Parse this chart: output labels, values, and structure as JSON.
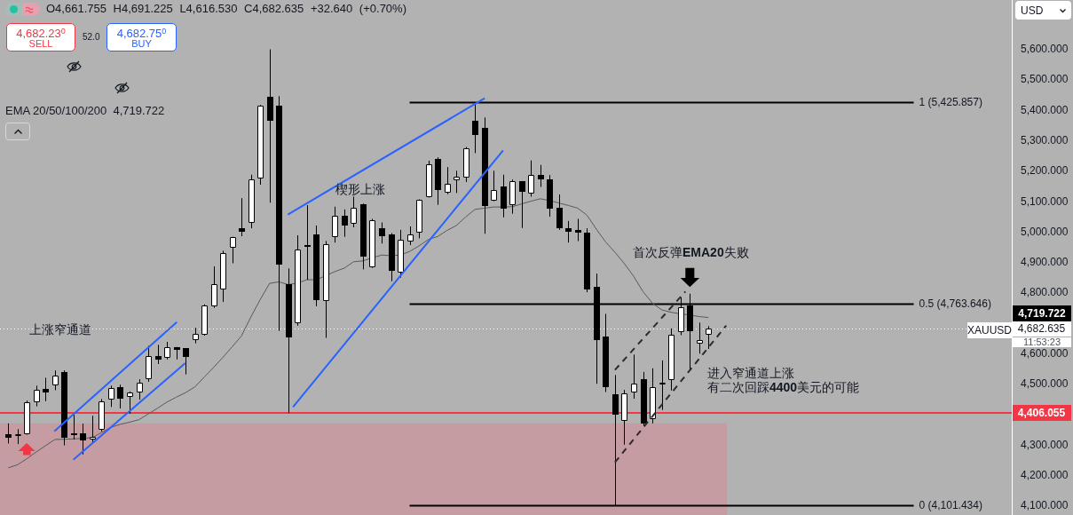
{
  "chart_data": {
    "type": "candlestick",
    "title": "O4,661.755 H4,691.225 L4,616.530 C4,682.635 +32.640 (+0.70%)",
    "categories": [
      null,
      null,
      null,
      null,
      null,
      null,
      null,
      null,
      null,
      null,
      null,
      null,
      null,
      null,
      null,
      null,
      null,
      null,
      null,
      null,
      null,
      null,
      null,
      null,
      null,
      null,
      null,
      null,
      null,
      null,
      null,
      null,
      null,
      null,
      null,
      null,
      null,
      null,
      null,
      null,
      null,
      null,
      null,
      null,
      null,
      null,
      null,
      null,
      null,
      null,
      null,
      null,
      null,
      null,
      null,
      null,
      null,
      null,
      null,
      null,
      null,
      null,
      null,
      null,
      null,
      null,
      null,
      null,
      null,
      null,
      null,
      null,
      null,
      null,
      null,
      null,
      null,
      null,
      null,
      null,
      null,
      null,
      null,
      null,
      null,
      null,
      null,
      null,
      null,
      null,
      null,
      null,
      null,
      null,
      null,
      null,
      null,
      null,
      null,
      null,
      null,
      null,
      null,
      null,
      null,
      null,
      null,
      null
    ],
    "ohlc": [
      [
        4337,
        4372,
        4306,
        4326
      ],
      [
        4336,
        4353,
        4304,
        4337
      ],
      [
        4336,
        4447,
        4335,
        4441
      ],
      [
        4442,
        4496,
        4428,
        4482
      ],
      [
        4484,
        4522,
        4445,
        4475
      ],
      [
        4498,
        4546,
        4481,
        4528
      ],
      [
        4541,
        4546,
        4300,
        4326
      ],
      [
        4340,
        4400,
        4319,
        4339
      ],
      [
        4339,
        4371,
        4270,
        4317
      ],
      [
        4319,
        4397,
        4309,
        4327
      ],
      [
        4351,
        4452,
        4345,
        4444
      ],
      [
        4450,
        4496,
        4426,
        4489
      ],
      [
        4492,
        4499,
        4421,
        4452
      ],
      [
        4458,
        4477,
        4404,
        4473
      ],
      [
        4473,
        4517,
        4450,
        4506
      ],
      [
        4517,
        4627,
        4509,
        4593
      ],
      [
        4593,
        4630,
        4567,
        4581
      ],
      [
        4587,
        4640,
        4582,
        4622
      ],
      [
        4622,
        4623,
        4582,
        4613
      ],
      [
        4618,
        4619,
        4533,
        4591
      ],
      [
        4645,
        4686,
        4635,
        4666
      ],
      [
        4664,
        4763,
        4660,
        4760
      ],
      [
        4757,
        4888,
        4752,
        4830
      ],
      [
        4813,
        4939,
        4771,
        4932
      ],
      [
        4948,
        4985,
        4898,
        4983
      ],
      [
        5013,
        5112,
        4987,
        5003
      ],
      [
        5032,
        5189,
        5013,
        5175
      ],
      [
        5178,
        5418,
        5156,
        5415
      ],
      [
        5445,
        5601,
        5097,
        5365
      ],
      [
        5416,
        5447,
        4676,
        4893
      ],
      [
        4830,
        4881,
        4406,
        4655
      ],
      [
        4700,
        4990,
        4693,
        4943
      ],
      [
        4959,
        5089,
        4844,
        4958
      ],
      [
        4993,
        5022,
        4757,
        4776
      ],
      [
        4773,
        4971,
        4653,
        4961
      ],
      [
        4985,
        5084,
        4966,
        5053
      ],
      [
        5053,
        5075,
        4985,
        5021
      ],
      [
        5029,
        5117,
        5016,
        5081
      ],
      [
        5092,
        5094,
        4878,
        4919
      ],
      [
        4885,
        5044,
        4883,
        5039
      ],
      [
        5014,
        5032,
        4963,
        4988
      ],
      [
        4993,
        4997,
        4839,
        4873
      ],
      [
        4867,
        5008,
        4851,
        4976
      ],
      [
        4969,
        5019,
        4958,
        4993
      ],
      [
        4998,
        5108,
        4980,
        5106
      ],
      [
        5115,
        5235,
        5114,
        5224
      ],
      [
        5241,
        5246,
        5090,
        5140
      ],
      [
        5131,
        5214,
        5125,
        5160
      ],
      [
        5170,
        5202,
        5129,
        5183
      ],
      [
        5180,
        5280,
        5165,
        5275
      ],
      [
        5367,
        5426,
        5260,
        5319
      ],
      [
        5343,
        5377,
        4995,
        5086
      ],
      [
        5104,
        5202,
        5102,
        5138
      ],
      [
        5151,
        5189,
        5049,
        5076
      ],
      [
        5089,
        5173,
        5061,
        5167
      ],
      [
        5167,
        5168,
        5014,
        5134
      ],
      [
        5126,
        5236,
        5117,
        5188
      ],
      [
        5188,
        5221,
        5149,
        5173
      ],
      [
        5173,
        5188,
        5051,
        5076
      ],
      [
        5081,
        5124,
        5008,
        5014
      ],
      [
        5013,
        5037,
        4966,
        5003
      ],
      [
        5008,
        5044,
        4971,
        5000
      ],
      [
        4998,
        5013,
        4803,
        4813
      ],
      [
        4820,
        4864,
        4502,
        4647
      ],
      [
        4658,
        4732,
        4475,
        4492
      ],
      [
        4468,
        4531,
        4101,
        4402
      ],
      [
        4379,
        4482,
        4302,
        4470
      ],
      [
        4473,
        4598,
        4453,
        4502
      ],
      [
        4517,
        4541,
        4363,
        4372
      ],
      [
        4385,
        4553,
        4372,
        4491
      ],
      [
        4506,
        4579,
        4416,
        4507
      ],
      [
        4514,
        4684,
        4480,
        4662
      ],
      [
        4672,
        4786,
        4662,
        4754
      ],
      [
        4760,
        4798,
        4550,
        4674
      ],
      [
        4633,
        4703,
        4601,
        4645
      ],
      [
        4661.755,
        4691.225,
        4616.53,
        4682.635
      ],
      null,
      null,
      null,
      null,
      null,
      null,
      null,
      null,
      null,
      null,
      null,
      null,
      null,
      null,
      null,
      null,
      null,
      null,
      null,
      null,
      null,
      null,
      null,
      null,
      null,
      null,
      null,
      null,
      null,
      null,
      null,
      null
    ],
    "series": [
      {
        "type": "line",
        "color": "#5a5a5a",
        "values": [
          4226,
          4236,
          4256,
          4278,
          4299,
          4319,
          4320,
          4321,
          4323,
          4325,
          4342,
          4359,
          4369,
          4376,
          4384,
          4403,
          4422,
          4442,
          4458,
          4473,
          4492,
          4524,
          4556,
          4589,
          4624,
          4660,
          4722,
          4779,
          4832,
          4837,
          4828,
          4833,
          4844,
          4844,
          4857,
          4871,
          4882,
          4903,
          4906,
          4916,
          4925,
          4923,
          4925,
          4937,
          4955,
          4976,
          4986,
          5006,
          5022,
          5050,
          5075,
          5079,
          5083,
          5083,
          5084,
          5093,
          5102,
          5110,
          5104,
          5096,
          5088,
          5079,
          5056,
          5010,
          4968,
          4934,
          4897,
          4855,
          4805,
          4767,
          4745,
          4737,
          4732,
          4728,
          4723,
          4719.722,
          null,
          null,
          null,
          null,
          null,
          null,
          null,
          null,
          null,
          null,
          null,
          null,
          null,
          null,
          null,
          null,
          null,
          null,
          null,
          null,
          null,
          null,
          null,
          null,
          null,
          null,
          null,
          null,
          null,
          null,
          null,
          null
        ]
      },
      {
        "type": "line",
        "name": "1 (5,425.857)",
        "color": "#000000",
        "values": [
          null,
          null,
          null,
          null,
          null,
          null,
          null,
          null,
          null,
          null,
          null,
          null,
          null,
          null,
          null,
          null,
          null,
          null,
          null,
          null,
          null,
          null,
          null,
          null,
          null,
          null,
          null,
          null,
          null,
          null,
          null,
          null,
          null,
          null,
          null,
          null,
          null,
          null,
          null,
          null,
          null,
          null,
          null,
          5425.857,
          5425.857,
          5425.857,
          5425.857,
          5425.857,
          5425.857,
          5425.857,
          5425.857,
          5425.857,
          5425.857,
          5425.857,
          5425.857,
          5425.857,
          5425.857,
          5425.857,
          5425.857,
          5425.857,
          5425.857,
          5425.857,
          5425.857,
          5425.857,
          5425.857,
          5425.857,
          5425.857,
          5425.857,
          5425.857,
          5425.857,
          5425.857,
          5425.857,
          5425.857,
          5425.857,
          5425.857,
          5425.857,
          5425.857,
          5425.857,
          5425.857,
          5425.857,
          5425.857,
          5425.857,
          5425.857,
          5425.857,
          5425.857,
          5425.857,
          5425.857,
          5425.857,
          5425.857,
          5425.857,
          5425.857,
          5425.857,
          5425.857,
          5425.857,
          5425.857,
          5425.857,
          5425.857,
          5425.857,
          null,
          null,
          null,
          null,
          null,
          null,
          null,
          null,
          null,
          null
        ]
      },
      {
        "type": "line",
        "name": "0.5 (4,763.646)",
        "color": "#000000",
        "values": [
          null,
          null,
          null,
          null,
          null,
          null,
          null,
          null,
          null,
          null,
          null,
          null,
          null,
          null,
          null,
          null,
          null,
          null,
          null,
          null,
          null,
          null,
          null,
          null,
          null,
          null,
          null,
          null,
          null,
          null,
          null,
          null,
          null,
          null,
          null,
          null,
          null,
          null,
          null,
          null,
          null,
          null,
          null,
          4763.646,
          4763.646,
          4763.646,
          4763.646,
          4763.646,
          4763.646,
          4763.646,
          4763.646,
          4763.646,
          4763.646,
          4763.646,
          4763.646,
          4763.646,
          4763.646,
          4763.646,
          4763.646,
          4763.646,
          4763.646,
          4763.646,
          4763.646,
          4763.646,
          4763.646,
          4763.646,
          4763.646,
          4763.646,
          4763.646,
          4763.646,
          4763.646,
          4763.646,
          4763.646,
          4763.646,
          4763.646,
          4763.646,
          4763.646,
          4763.646,
          4763.646,
          4763.646,
          4763.646,
          4763.646,
          4763.646,
          4763.646,
          4763.646,
          4763.646,
          4763.646,
          4763.646,
          4763.646,
          4763.646,
          4763.646,
          4763.646,
          4763.646,
          4763.646,
          4763.646,
          4763.646,
          4763.646,
          4763.646,
          null,
          null,
          null,
          null,
          null,
          null,
          null,
          null,
          null,
          null
        ]
      },
      {
        "type": "line",
        "name": "0 (4,101.434)",
        "color": "#000000",
        "values": [
          null,
          null,
          null,
          null,
          null,
          null,
          null,
          null,
          null,
          null,
          null,
          null,
          null,
          null,
          null,
          null,
          null,
          null,
          null,
          null,
          null,
          null,
          null,
          null,
          null,
          null,
          null,
          null,
          null,
          null,
          null,
          null,
          null,
          null,
          null,
          null,
          null,
          null,
          null,
          null,
          null,
          null,
          null,
          4101.434,
          4101.434,
          4101.434,
          4101.434,
          4101.434,
          4101.434,
          4101.434,
          4101.434,
          4101.434,
          4101.434,
          4101.434,
          4101.434,
          4101.434,
          4101.434,
          4101.434,
          4101.434,
          4101.434,
          4101.434,
          4101.434,
          4101.434,
          4101.434,
          4101.434,
          4101.434,
          4101.434,
          4101.434,
          4101.434,
          4101.434,
          4101.434,
          4101.434,
          4101.434,
          4101.434,
          4101.434,
          4101.434,
          4101.434,
          4101.434,
          4101.434,
          4101.434,
          4101.434,
          4101.434,
          4101.434,
          4101.434,
          4101.434,
          4101.434,
          4101.434,
          4101.434,
          4101.434,
          4101.434,
          4101.434,
          4101.434,
          4101.434,
          4101.434,
          4101.434,
          4101.434,
          4101.434,
          4101.434,
          null,
          null,
          null,
          null,
          null,
          null,
          null,
          null,
          null,
          null
        ]
      }
    ],
    "ylim": [
      4071,
      5763
    ],
    "yticks": [
      {
        "value": 4100,
        "label": "4,100.000"
      },
      {
        "value": 4200,
        "label": "4,200.000"
      },
      {
        "value": 4300,
        "label": "4,300.000"
      },
      {
        "value": 4500,
        "label": "4,500.000"
      },
      {
        "value": 4600,
        "label": "4,600.000"
      },
      {
        "value": 4800,
        "label": "4,800.000"
      },
      {
        "value": 4900,
        "label": "4,900.000"
      },
      {
        "value": 5000,
        "label": "5,000.000"
      },
      {
        "value": 5100,
        "label": "5,100.000"
      },
      {
        "value": 5200,
        "label": "5,200.000"
      },
      {
        "value": 5300,
        "label": "5,300.000"
      },
      {
        "value": 5400,
        "label": "5,400.000"
      },
      {
        "value": 5500,
        "label": "5,500.000"
      },
      {
        "value": 5600,
        "label": "5,600.000"
      }
    ],
    "ref_lines": [
      {
        "axis": "y",
        "value": 4406.055,
        "label": "4,406.055",
        "color": "#f23645"
      },
      {
        "axis": "y",
        "value": 4682.635,
        "label": "4,682.635",
        "color": "#ffffff",
        "line_style": "dotted"
      }
    ],
    "bands": [
      {
        "axis": "y",
        "from": 4071,
        "to": 4372,
        "color": "#c59ca1"
      }
    ],
    "annotations": [
      "4,682.230",
      "SELL",
      "52.0",
      "4,682.750",
      "BUY",
      "EMA 20/50/100/200  4,719.722",
      "上涨窄通道",
      "楔形上涨",
      "首次反弹EMA20失败",
      "进入窄通道上涨",
      "有二次回踩4400美元的可能",
      "XAUUSD",
      "11:53:23",
      "USD",
      "4,719.722"
    ],
    "tick_labels": "y",
    "marker": "none"
  }
}
